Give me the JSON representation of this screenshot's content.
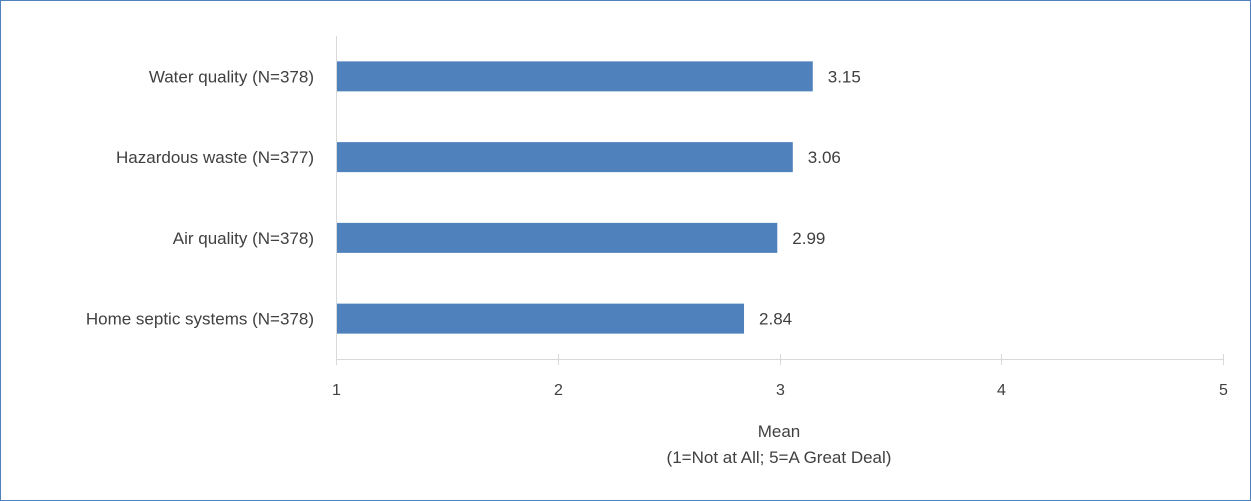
{
  "chart_data": {
    "type": "bar",
    "orientation": "horizontal",
    "categories": [
      "Water quality (N=378)",
      "Hazardous waste (N=377)",
      "Air quality (N=378)",
      "Home septic systems (N=378)"
    ],
    "values": [
      3.15,
      3.06,
      2.99,
      2.84
    ],
    "data_labels": [
      "3.15",
      "3.06",
      "2.99",
      "2.84"
    ],
    "title": "",
    "xlabel": "Mean",
    "xlabel_sub": "(1=Not at All; 5=A Great Deal)",
    "ylabel": "",
    "xlim": [
      1,
      5
    ],
    "xticks": [
      1,
      2,
      3,
      4,
      5
    ],
    "grid": false,
    "legend": "none",
    "bar_color": "#4f81bd",
    "axis_color": "#d9d9d9",
    "frame_color": "#4f81bd"
  }
}
